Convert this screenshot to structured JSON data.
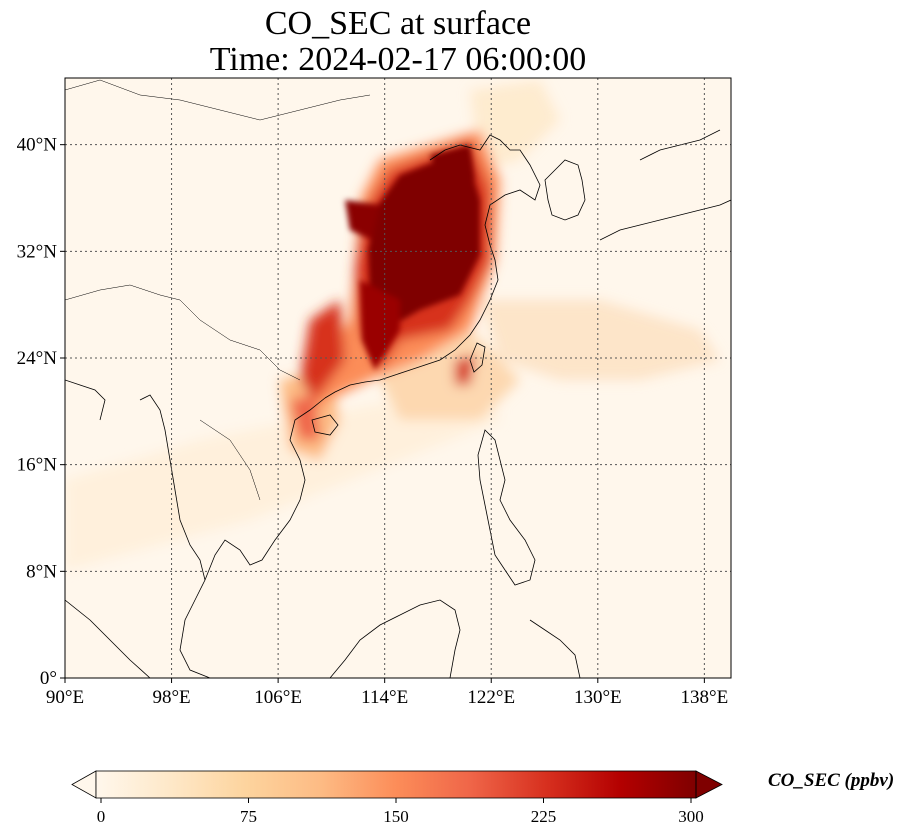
{
  "title": {
    "line1": "CO_SEC at surface",
    "line2": "Time: 2024-02-17 06:00:00"
  },
  "map": {
    "lon_range": [
      90,
      140
    ],
    "lat_range": [
      0,
      45
    ],
    "lon_ticks": [
      "90°E",
      "98°E",
      "106°E",
      "114°E",
      "122°E",
      "130°E",
      "138°E"
    ],
    "lat_ticks": [
      "0°",
      "8°N",
      "16°N",
      "24°N",
      "32°N",
      "40°N"
    ],
    "gridlines": true,
    "colormap": "OrRd"
  },
  "colorbar": {
    "label": "CO_SEC (ppbv)",
    "ticks": [
      "0",
      "75",
      "150",
      "225",
      "300"
    ],
    "range": [
      0,
      300
    ],
    "extend": "both",
    "colors": [
      "#fff7ec",
      "#fee8c8",
      "#fdd49e",
      "#fdbb84",
      "#fc8d59",
      "#ef6548",
      "#d7301f",
      "#b30000",
      "#7f0000"
    ]
  }
}
